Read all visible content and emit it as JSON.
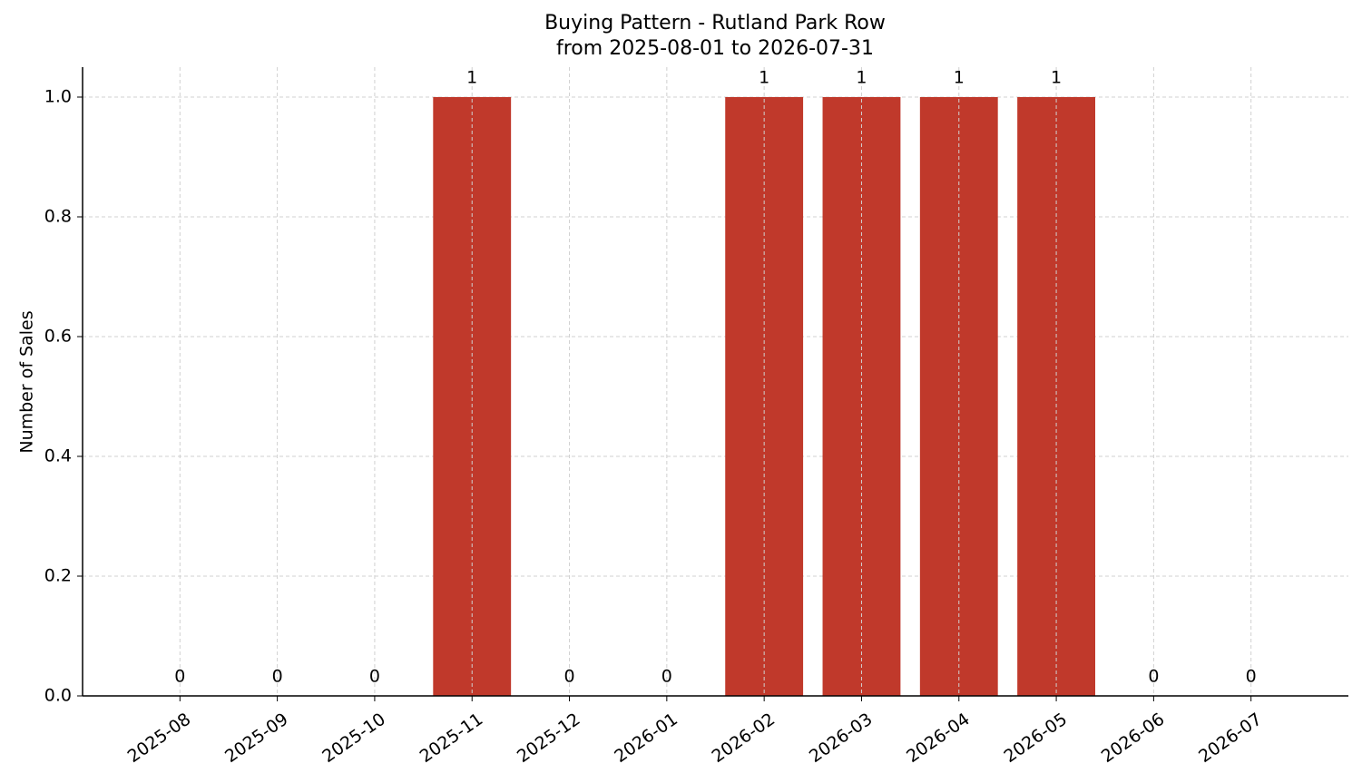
{
  "chart_data": {
    "type": "bar",
    "title": "Buying Pattern - Rutland Park Row",
    "subtitle": "from 2025-08-01 to 2026-07-31",
    "y_label": "Number of Sales",
    "categories": [
      "2025-08",
      "2025-09",
      "2025-10",
      "2025-11",
      "2025-12",
      "2026-01",
      "2026-02",
      "2026-03",
      "2026-04",
      "2026-05",
      "2026-06",
      "2026-07"
    ],
    "values": [
      0,
      0,
      0,
      1,
      0,
      0,
      1,
      1,
      1,
      1,
      0,
      0
    ],
    "color": "#c0392b",
    "ylim": [
      0,
      1.05
    ],
    "yticks": [
      {
        "value": 0,
        "label": "0.0"
      },
      0.2,
      0.4,
      0.6,
      0.8,
      {
        "value": 1,
        "label": "1.0"
      }
    ],
    "grid": true
  }
}
